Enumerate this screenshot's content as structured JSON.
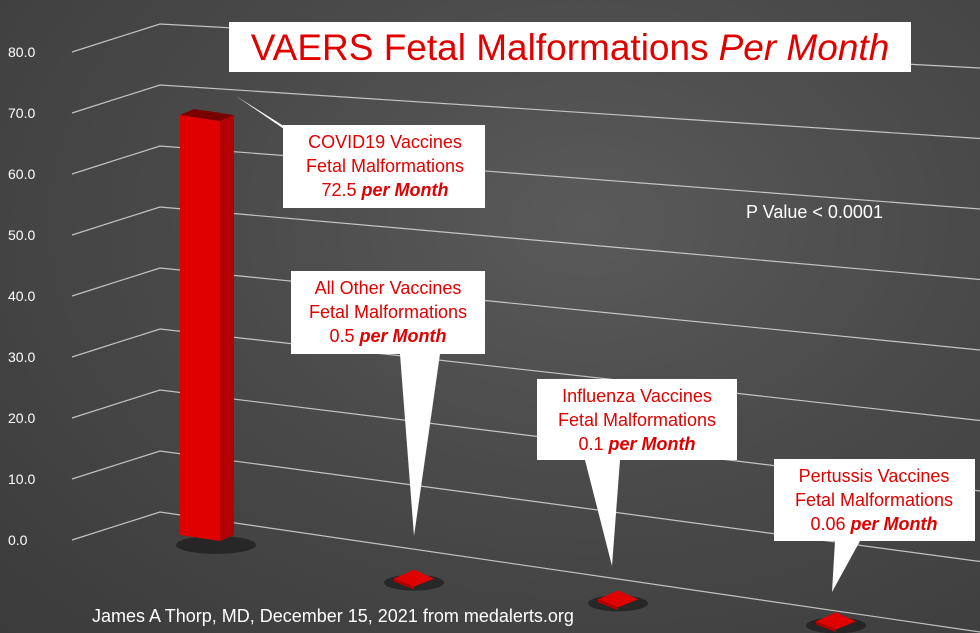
{
  "chart_data": {
    "type": "bar",
    "title": "VAERS Fetal Malformations",
    "title_emphasis": "Per Month",
    "categories": [
      "COVID19 Vaccines",
      "All Other Vaccines",
      "Influenza Vaccines",
      "Pertussis Vaccines"
    ],
    "values": [
      72.5,
      0.5,
      0.1,
      0.06
    ],
    "ylim": [
      0,
      80
    ],
    "yticks": [
      "0.0",
      "10.0",
      "20.0",
      "30.0",
      "40.0",
      "50.0",
      "60.0",
      "70.0",
      "80.0"
    ],
    "grid": true,
    "three_d": true,
    "bar_color": "#e00000",
    "annotations": [
      {
        "line1": "COVID19 Vaccines",
        "line2": "Fetal Malformations",
        "value": "72.5",
        "suffix": "per Month"
      },
      {
        "line1": "All Other Vaccines",
        "line2": "Fetal Malformations",
        "value": "0.5",
        "suffix": "per Month"
      },
      {
        "line1": "Influenza Vaccines",
        "line2": "Fetal Malformations",
        "value": "0.1",
        "suffix": "per Month"
      },
      {
        "line1": "Pertussis Vaccines",
        "line2": "Fetal Malformations",
        "value": "0.06",
        "suffix": "per Month"
      }
    ],
    "p_value_text": "P Value < 0.0001"
  },
  "credit": "James A Thorp, MD, December 15, 2021 from medalerts.org"
}
